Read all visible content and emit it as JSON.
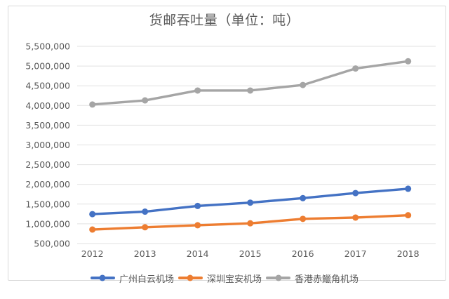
{
  "chart_data": {
    "type": "line",
    "title": "货邮吞吐量（单位：吨）",
    "categories": [
      "2012",
      "2013",
      "2014",
      "2015",
      "2016",
      "2017",
      "2018"
    ],
    "series": [
      {
        "name": "广州白云机场",
        "color": "#4472C4",
        "values": [
          1246000,
          1309000,
          1454000,
          1537000,
          1652000,
          1780000,
          1890000
        ]
      },
      {
        "name": "深圳宝安机场",
        "color": "#ED7D31",
        "values": [
          855000,
          913000,
          964000,
          1013000,
          1126000,
          1159000,
          1218000
        ]
      },
      {
        "name": "香港赤鱲角机场",
        "color": "#A5A5A5",
        "values": [
          4025000,
          4129000,
          4380000,
          4380000,
          4520000,
          4938000,
          5121000
        ]
      }
    ],
    "xlabel": "",
    "ylabel": "",
    "ylim": [
      500000,
      5500000
    ],
    "ytick_step": 500000,
    "ytick_labels": [
      "500,000",
      "1,000,000",
      "1,500,000",
      "2,000,000",
      "2,500,000",
      "3,000,000",
      "3,500,000",
      "4,000,000",
      "4,500,000",
      "5,000,000",
      "5,500,000"
    ],
    "grid": true,
    "legend_position": "bottom",
    "styles": {
      "grid_color": "#e2e2e2",
      "frame_border_color": "#d9d9d9",
      "axis_text_color": "#595959",
      "title_color": "#595959",
      "background": "#ffffff"
    }
  }
}
